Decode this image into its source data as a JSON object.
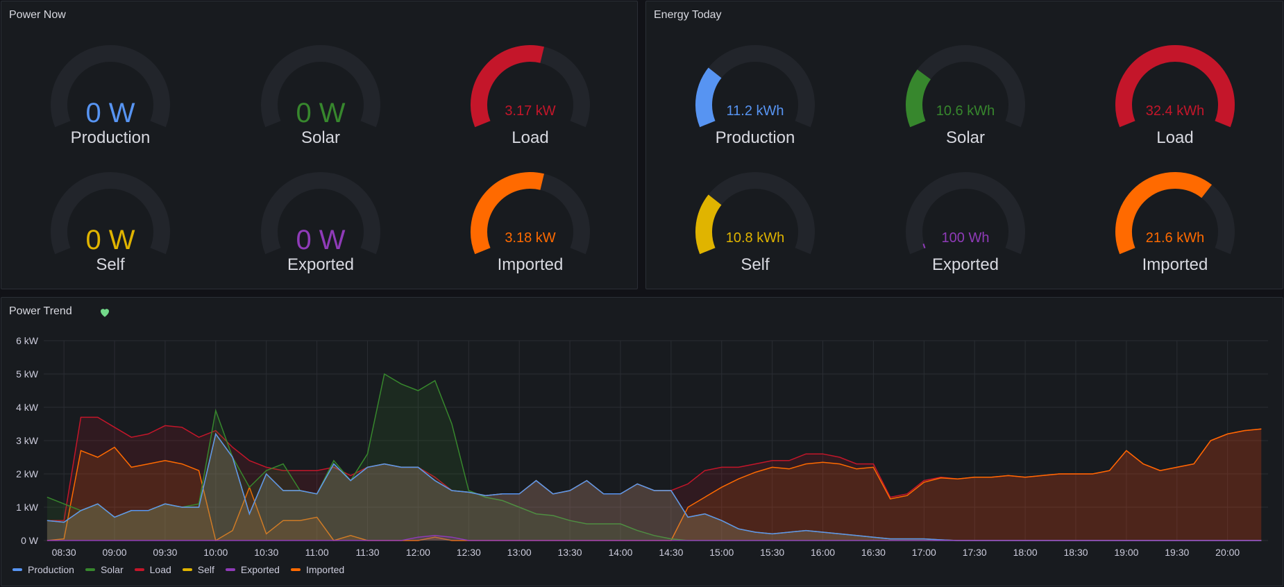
{
  "power_now": {
    "title": "Power Now",
    "gauges": [
      {
        "label": "Production",
        "value": "0 W",
        "fraction": 0,
        "color": "#5794F2",
        "size": "big"
      },
      {
        "label": "Solar",
        "value": "0 W",
        "fraction": 0,
        "color": "#37872D",
        "size": "big"
      },
      {
        "label": "Load",
        "value": "3.17 kW",
        "fraction": 0.56,
        "color": "#C4162A",
        "size": "small"
      },
      {
        "label": "Self",
        "value": "0 W",
        "fraction": 0,
        "color": "#E0B400",
        "size": "big"
      },
      {
        "label": "Exported",
        "value": "0 W",
        "fraction": 0,
        "color": "#8F3BB8",
        "size": "big"
      },
      {
        "label": "Imported",
        "value": "3.18 kW",
        "fraction": 0.56,
        "color": "#FF6A00",
        "size": "small"
      }
    ]
  },
  "energy_today": {
    "title": "Energy Today",
    "gauges": [
      {
        "label": "Production",
        "value": "11.2 kWh",
        "fraction": 0.27,
        "color": "#5794F2",
        "size": "small"
      },
      {
        "label": "Solar",
        "value": "10.6 kWh",
        "fraction": 0.26,
        "color": "#37872D",
        "size": "small"
      },
      {
        "label": "Load",
        "value": "32.4 kWh",
        "fraction": 1.0,
        "color": "#C4162A",
        "size": "small"
      },
      {
        "label": "Self",
        "value": "10.8 kWh",
        "fraction": 0.27,
        "color": "#E0B400",
        "size": "small"
      },
      {
        "label": "Exported",
        "value": "100 Wh",
        "fraction": 0.01,
        "color": "#8F3BB8",
        "size": "small"
      },
      {
        "label": "Imported",
        "value": "21.6 kWh",
        "fraction": 0.67,
        "color": "#FF6A00",
        "size": "small"
      }
    ]
  },
  "power_trend": {
    "title": "Power Trend",
    "status_icon": "heart-icon",
    "status_color": "#73D98A"
  },
  "chart_data": {
    "type": "line",
    "title": "Power Trend",
    "xlabel": "",
    "ylabel": "",
    "ylim": [
      0,
      6
    ],
    "y_unit": "kW",
    "yticks": [
      "0 W",
      "1 kW",
      "2 kW",
      "3 kW",
      "4 kW",
      "5 kW",
      "6 kW"
    ],
    "xlim": [
      "08:18",
      "20:24"
    ],
    "xticks": [
      "08:30",
      "09:00",
      "09:30",
      "10:00",
      "10:30",
      "11:00",
      "11:30",
      "12:00",
      "12:30",
      "13:00",
      "13:30",
      "14:00",
      "14:30",
      "15:00",
      "15:30",
      "16:00",
      "16:30",
      "17:00",
      "17:30",
      "18:00",
      "18:30",
      "19:00",
      "19:30",
      "20:00"
    ],
    "x_start": "08:20",
    "x_step_minutes": 10,
    "grid": true,
    "legend": "bottom-left",
    "series": [
      {
        "name": "Production",
        "color": "#5794F2",
        "values": [
          0.6,
          0.55,
          0.9,
          1.1,
          0.7,
          0.9,
          0.9,
          1.1,
          1.0,
          1.0,
          3.2,
          2.5,
          0.8,
          2.0,
          1.5,
          1.5,
          1.4,
          2.3,
          1.8,
          2.2,
          2.3,
          2.2,
          2.2,
          1.8,
          1.5,
          1.45,
          1.35,
          1.4,
          1.4,
          1.8,
          1.4,
          1.5,
          1.8,
          1.4,
          1.4,
          1.7,
          1.5,
          1.5,
          0.7,
          0.8,
          0.6,
          0.35,
          0.25,
          0.2,
          0.25,
          0.3,
          0.25,
          0.2,
          0.15,
          0.1,
          0.05,
          0.05,
          0.05,
          0.02,
          0,
          0,
          0,
          0,
          0,
          0,
          0,
          0,
          0,
          0,
          0,
          0,
          0,
          0,
          0,
          0,
          0,
          0,
          0
        ]
      },
      {
        "name": "Solar",
        "color": "#37872D",
        "values": [
          1.3,
          1.1,
          0.9,
          1.1,
          0.7,
          0.9,
          0.9,
          1.1,
          1.0,
          1.1,
          3.9,
          2.5,
          1.6,
          2.1,
          2.3,
          1.5,
          1.4,
          2.4,
          1.8,
          2.6,
          5.0,
          4.7,
          4.5,
          4.8,
          3.5,
          1.5,
          1.3,
          1.2,
          1.0,
          0.8,
          0.75,
          0.6,
          0.5,
          0.5,
          0.5,
          0.3,
          0.15,
          0.05,
          0,
          0,
          0,
          0,
          0,
          0,
          0,
          0,
          0,
          0,
          0,
          0,
          0,
          0,
          0,
          0,
          0,
          0,
          0,
          0,
          0,
          0,
          0,
          0,
          0,
          0,
          0,
          0,
          0,
          0,
          0,
          0,
          0,
          0,
          0
        ]
      },
      {
        "name": "Load",
        "color": "#C4162A",
        "values": [
          0.6,
          0.6,
          3.7,
          3.7,
          3.4,
          3.1,
          3.2,
          3.45,
          3.4,
          3.1,
          3.3,
          2.8,
          2.4,
          2.2,
          2.1,
          2.1,
          2.1,
          2.2,
          1.95,
          2.2,
          2.3,
          2.2,
          2.2,
          1.9,
          1.5,
          1.45,
          1.35,
          1.4,
          1.4,
          1.8,
          1.4,
          1.5,
          1.8,
          1.4,
          1.4,
          1.7,
          1.5,
          1.5,
          1.7,
          2.1,
          2.2,
          2.2,
          2.3,
          2.4,
          2.4,
          2.6,
          2.6,
          2.5,
          2.3,
          2.3,
          1.3,
          1.4,
          1.8,
          1.9,
          1.85,
          1.9,
          1.9,
          1.95,
          1.9,
          1.95,
          2.0,
          2.0,
          2.0,
          2.1,
          2.7,
          2.3,
          2.1,
          2.2,
          2.3,
          3.0,
          3.2,
          3.3,
          3.35
        ]
      },
      {
        "name": "Self",
        "color": "#E0B400",
        "values": [
          0.6,
          0.55,
          0.9,
          1.1,
          0.7,
          0.9,
          0.9,
          1.1,
          1.0,
          1.0,
          3.2,
          2.5,
          0.8,
          2.0,
          1.5,
          1.5,
          1.4,
          2.3,
          1.8,
          2.2,
          2.3,
          2.2,
          2.2,
          1.8,
          1.5,
          1.45,
          1.35,
          1.4,
          1.4,
          1.8,
          1.4,
          1.5,
          1.8,
          1.4,
          1.4,
          1.7,
          1.5,
          1.5,
          0.7,
          0.8,
          0.6,
          0.35,
          0.25,
          0.2,
          0.25,
          0.3,
          0.25,
          0.2,
          0.15,
          0.1,
          0.05,
          0.05,
          0.05,
          0.02,
          0,
          0,
          0,
          0,
          0,
          0,
          0,
          0,
          0,
          0,
          0,
          0,
          0,
          0,
          0,
          0,
          0,
          0,
          0
        ]
      },
      {
        "name": "Exported",
        "color": "#8F3BB8",
        "values": [
          0,
          0,
          0,
          0,
          0,
          0,
          0,
          0,
          0,
          0,
          0,
          0,
          0,
          0,
          0,
          0,
          0,
          0,
          0,
          0,
          0,
          0,
          0.1,
          0.15,
          0.1,
          0,
          0,
          0,
          0,
          0,
          0,
          0,
          0,
          0,
          0,
          0,
          0,
          0,
          0,
          0,
          0,
          0,
          0,
          0,
          0,
          0,
          0,
          0,
          0,
          0,
          0,
          0,
          0,
          0,
          0,
          0,
          0,
          0,
          0,
          0,
          0,
          0,
          0,
          0,
          0,
          0,
          0,
          0,
          0,
          0,
          0,
          0,
          0
        ]
      },
      {
        "name": "Imported",
        "color": "#FF6A00",
        "values": [
          0,
          0.05,
          2.7,
          2.5,
          2.8,
          2.2,
          2.3,
          2.4,
          2.3,
          2.1,
          0,
          0.3,
          1.6,
          0.2,
          0.6,
          0.6,
          0.7,
          0,
          0.15,
          0,
          0,
          0,
          0,
          0.1,
          0,
          0,
          0,
          0,
          0,
          0,
          0,
          0,
          0,
          0,
          0,
          0,
          0,
          0,
          1.0,
          1.3,
          1.6,
          1.85,
          2.05,
          2.2,
          2.15,
          2.3,
          2.35,
          2.3,
          2.15,
          2.2,
          1.25,
          1.35,
          1.75,
          1.88,
          1.85,
          1.9,
          1.9,
          1.95,
          1.9,
          1.95,
          2.0,
          2.0,
          2.0,
          2.1,
          2.7,
          2.3,
          2.1,
          2.2,
          2.3,
          3.0,
          3.2,
          3.3,
          3.35
        ]
      }
    ]
  }
}
